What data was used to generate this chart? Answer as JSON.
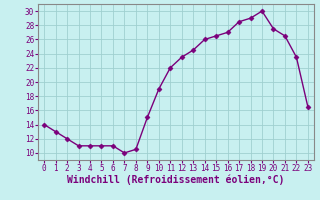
{
  "x": [
    0,
    1,
    2,
    3,
    4,
    5,
    6,
    7,
    8,
    9,
    10,
    11,
    12,
    13,
    14,
    15,
    16,
    17,
    18,
    19,
    20,
    21,
    22,
    23
  ],
  "y": [
    14,
    13,
    12,
    11,
    11,
    11,
    11,
    10,
    10.5,
    15,
    19,
    22,
    23.5,
    24.5,
    26,
    26.5,
    27,
    28.5,
    29,
    30,
    27.5,
    26.5,
    23.5,
    16.5
  ],
  "line_color": "#7b007b",
  "marker": "D",
  "marker_size": 2.5,
  "background_color": "#c8f0f0",
  "grid_color": "#a0d0d0",
  "xlabel": "Windchill (Refroidissement éolien,°C)",
  "xlabel_fontsize": 7,
  "ylim": [
    9,
    31
  ],
  "yticks": [
    10,
    12,
    14,
    16,
    18,
    20,
    22,
    24,
    26,
    28,
    30
  ],
  "xticks": [
    0,
    1,
    2,
    3,
    4,
    5,
    6,
    7,
    8,
    9,
    10,
    11,
    12,
    13,
    14,
    15,
    16,
    17,
    18,
    19,
    20,
    21,
    22,
    23
  ],
  "tick_fontsize": 5.5,
  "line_width": 1.0,
  "spine_color": "#888888",
  "label_color": "#7b007b"
}
